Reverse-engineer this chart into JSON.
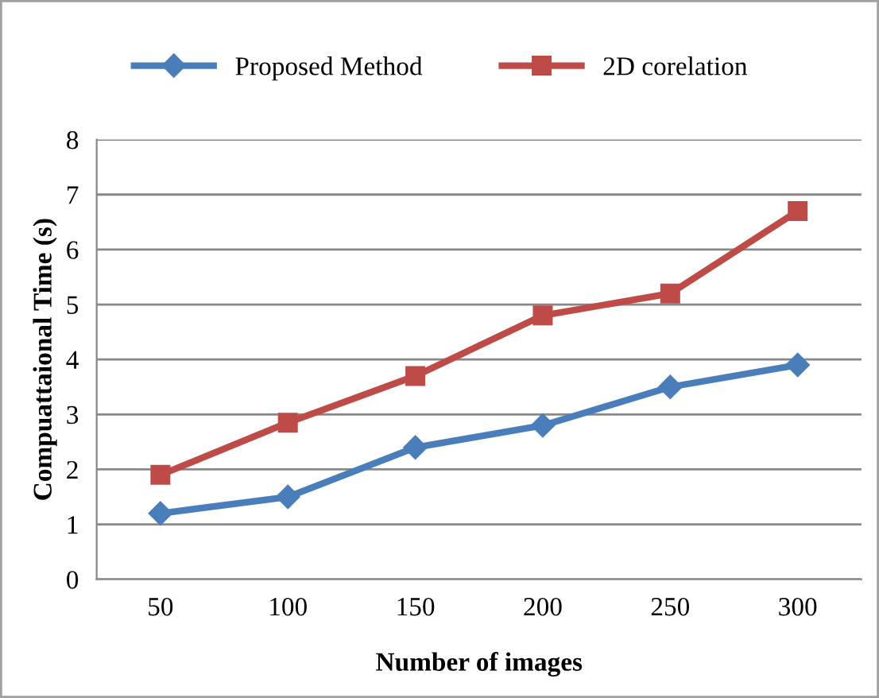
{
  "chart_data": {
    "type": "line",
    "xlabel": "Number of images",
    "ylabel": "Compuattaional Time (s)",
    "categories": [
      "50",
      "100",
      "150",
      "200",
      "250",
      "300"
    ],
    "series": [
      {
        "name": "Proposed Method",
        "color": "#4a7ebb",
        "marker": "diamond",
        "values": [
          1.2,
          1.5,
          2.4,
          2.8,
          3.5,
          3.9
        ]
      },
      {
        "name": "2D corelation",
        "color": "#be4b48",
        "marker": "square",
        "values": [
          1.9,
          2.85,
          3.7,
          4.8,
          5.2,
          6.7
        ]
      }
    ],
    "ylim": [
      0,
      8
    ],
    "yticks": [
      0,
      1,
      2,
      3,
      4,
      5,
      6,
      7,
      8
    ],
    "grid": "y",
    "legend": "top",
    "line_style": "solid"
  }
}
